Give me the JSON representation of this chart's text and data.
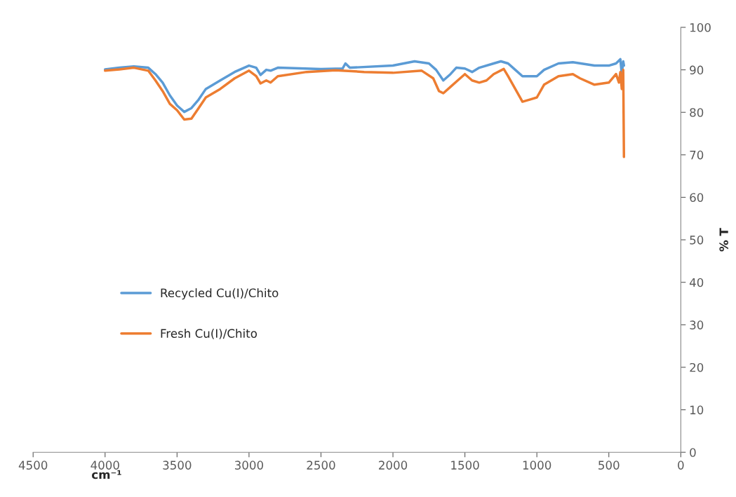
{
  "chart_data": {
    "type": "line",
    "xlabel": "cm⁻¹",
    "ylabel": "% T",
    "xlim": [
      4500,
      0
    ],
    "xticks": [
      4500,
      4000,
      3500,
      3000,
      2500,
      2000,
      1500,
      1000,
      500,
      0
    ],
    "ylim": [
      0,
      100
    ],
    "yticks": [
      0,
      10,
      20,
      30,
      40,
      50,
      60,
      70,
      80,
      90,
      100
    ],
    "grid": false,
    "legend": "left",
    "marker": "none",
    "line_style": "solid",
    "series": [
      {
        "name": "Recycled Cu(I)/Chito",
        "color": "#5b9bd5",
        "x": [
          4000,
          3900,
          3800,
          3700,
          3650,
          3600,
          3550,
          3500,
          3450,
          3400,
          3350,
          3300,
          3200,
          3100,
          3000,
          2950,
          2920,
          2880,
          2850,
          2800,
          2500,
          2350,
          2330,
          2300,
          2000,
          1850,
          1750,
          1700,
          1650,
          1600,
          1560,
          1500,
          1450,
          1400,
          1300,
          1250,
          1200,
          1150,
          1100,
          1000,
          950,
          850,
          750,
          600,
          500,
          450,
          420,
          410,
          400,
          395
        ],
        "values": [
          90.1,
          90.5,
          90.8,
          90.5,
          89,
          87,
          84,
          81.6,
          80.1,
          81,
          83,
          85.5,
          87.5,
          89.5,
          91,
          90.5,
          88.8,
          90,
          89.8,
          90.5,
          90.2,
          90.3,
          91.5,
          90.5,
          91,
          92,
          91.5,
          90,
          87.5,
          89,
          90.5,
          90.3,
          89.5,
          90.5,
          91.5,
          92,
          91.5,
          90,
          88.5,
          88.5,
          90,
          91.5,
          91.8,
          91,
          91,
          91.5,
          92.5,
          89,
          92,
          91
        ]
      },
      {
        "name": "Fresh Cu(I)/Chito",
        "color": "#ed7d31",
        "x": [
          4000,
          3900,
          3800,
          3700,
          3650,
          3600,
          3550,
          3500,
          3450,
          3400,
          3350,
          3300,
          3200,
          3100,
          3000,
          2950,
          2920,
          2880,
          2850,
          2800,
          2600,
          2400,
          2200,
          2000,
          1800,
          1720,
          1680,
          1650,
          1600,
          1550,
          1500,
          1450,
          1400,
          1350,
          1300,
          1230,
          1200,
          1150,
          1100,
          1050,
          1000,
          950,
          850,
          750,
          700,
          600,
          500,
          450,
          430,
          420,
          410,
          400,
          395
        ],
        "values": [
          89.8,
          90.1,
          90.5,
          89.8,
          87.5,
          85,
          82,
          80.5,
          78.3,
          78.5,
          81,
          83.5,
          85.5,
          88,
          89.8,
          88.5,
          86.8,
          87.5,
          87,
          88.5,
          89.5,
          89.9,
          89.5,
          89.3,
          89.8,
          88,
          85,
          84.5,
          86,
          87.5,
          89,
          87.5,
          87,
          87.5,
          89,
          90.2,
          88.5,
          85.5,
          82.5,
          83,
          83.5,
          86.5,
          88.5,
          89,
          88,
          86.5,
          87,
          89,
          87,
          89.5,
          85.5,
          90,
          69.5
        ]
      }
    ]
  }
}
